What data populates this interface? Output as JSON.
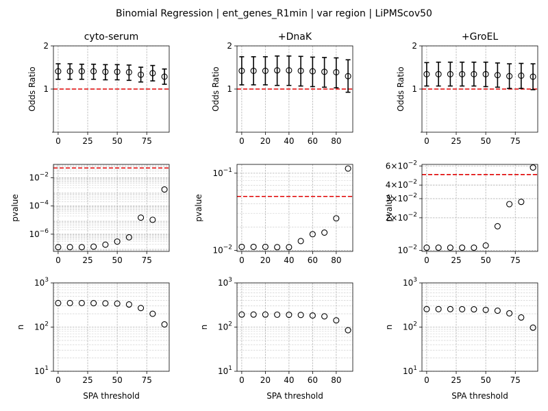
{
  "suptitle": "Binomial Regression | ent_genes_R1min | var region | LiPMScov50",
  "xlabel": "SPA threshold",
  "chart_data": [
    {
      "column": "cyto-serum",
      "panels": {
        "odds_ratio": {
          "type": "scatter",
          "ylabel": "Odds Ratio",
          "yscale": "log",
          "ylim": [
            0.5,
            2
          ],
          "yticks": [
            1,
            2
          ],
          "yticklabels": [
            "1",
            "2"
          ],
          "xlim": [
            -4,
            94
          ],
          "xticks": [
            0,
            25,
            50,
            75
          ],
          "x": [
            0,
            10,
            20,
            30,
            40,
            50,
            60,
            70,
            80,
            90
          ],
          "y": [
            1.33,
            1.33,
            1.33,
            1.33,
            1.32,
            1.32,
            1.31,
            1.26,
            1.29,
            1.22
          ],
          "low": [
            1.17,
            1.17,
            1.17,
            1.17,
            1.16,
            1.16,
            1.15,
            1.12,
            1.14,
            1.08
          ],
          "high": [
            1.5,
            1.5,
            1.49,
            1.49,
            1.48,
            1.48,
            1.47,
            1.42,
            1.46,
            1.38
          ],
          "reference_line": 1.0
        },
        "pvalue": {
          "type": "scatter",
          "ylabel": "pvalue",
          "yscale": "log",
          "ylim": [
            6e-08,
            0.09
          ],
          "yticks": [
            1e-06,
            0.0001,
            0.01
          ],
          "yticklabels": [
            "10^-6",
            "10^-4",
            "10^-2"
          ],
          "xlim": [
            -4,
            94
          ],
          "xticks": [
            0,
            25,
            50,
            75
          ],
          "x": [
            0,
            10,
            20,
            30,
            40,
            50,
            60,
            70,
            80,
            90
          ],
          "y": [
            1.2e-07,
            1.2e-07,
            1.2e-07,
            1.3e-07,
            1.8e-07,
            3e-07,
            6e-07,
            1.5e-05,
            1.05e-05,
            0.0015
          ],
          "reference_line": 0.05
        },
        "n": {
          "type": "scatter",
          "ylabel": "n",
          "yscale": "log",
          "ylim": [
            10,
            1000
          ],
          "yticks": [
            10,
            100,
            1000
          ],
          "yticklabels": [
            "10^1",
            "10^2",
            "10^3"
          ],
          "xlim": [
            -4,
            94
          ],
          "xticks": [
            0,
            25,
            50,
            75
          ],
          "x": [
            0,
            10,
            20,
            30,
            40,
            50,
            60,
            70,
            80,
            90
          ],
          "y": [
            350,
            350,
            350,
            348,
            345,
            340,
            325,
            270,
            200,
            115
          ]
        }
      }
    },
    {
      "column": "+DnaK",
      "panels": {
        "odds_ratio": {
          "type": "scatter",
          "ylabel": "Odds Ratio",
          "yscale": "log",
          "ylim": [
            0.5,
            2
          ],
          "yticks": [
            1,
            2
          ],
          "yticklabels": [
            "1",
            "2"
          ],
          "xlim": [
            -4,
            94
          ],
          "xticks": [
            0,
            20,
            40,
            60,
            80
          ],
          "x": [
            0,
            10,
            20,
            30,
            40,
            50,
            60,
            70,
            80,
            90
          ],
          "y": [
            1.34,
            1.34,
            1.34,
            1.35,
            1.35,
            1.34,
            1.33,
            1.32,
            1.31,
            1.23
          ],
          "low": [
            1.07,
            1.07,
            1.07,
            1.06,
            1.06,
            1.05,
            1.04,
            1.03,
            1.02,
            0.95
          ],
          "high": [
            1.68,
            1.68,
            1.68,
            1.7,
            1.7,
            1.69,
            1.67,
            1.66,
            1.65,
            1.6
          ],
          "reference_line": 1.0
        },
        "pvalue": {
          "type": "scatter",
          "ylabel": "pvalue",
          "yscale": "log",
          "ylim": [
            0.0097,
            0.13
          ],
          "yticks": [
            0.01,
            0.1
          ],
          "yticklabels": [
            "10^-2",
            "10^-1"
          ],
          "xlim": [
            -4,
            94
          ],
          "xticks": [
            0,
            20,
            40,
            60,
            80
          ],
          "x": [
            0,
            10,
            20,
            30,
            40,
            50,
            60,
            70,
            80,
            90
          ],
          "y": [
            0.0111,
            0.0111,
            0.0111,
            0.011,
            0.011,
            0.0132,
            0.0162,
            0.017,
            0.026,
            0.115
          ],
          "reference_line": 0.05
        },
        "n": {
          "type": "scatter",
          "ylabel": "n",
          "yscale": "log",
          "ylim": [
            10,
            1000
          ],
          "yticks": [
            10,
            100,
            1000
          ],
          "yticklabels": [
            "10^1",
            "10^2",
            "10^3"
          ],
          "xlim": [
            -4,
            94
          ],
          "xticks": [
            0,
            20,
            40,
            60,
            80
          ],
          "x": [
            0,
            10,
            20,
            30,
            40,
            50,
            60,
            70,
            80,
            90
          ],
          "y": [
            192,
            192,
            192,
            191,
            190,
            188,
            183,
            175,
            142,
            85
          ]
        }
      }
    },
    {
      "column": "+GroEL",
      "panels": {
        "odds_ratio": {
          "type": "scatter",
          "ylabel": "Odds Ratio",
          "yscale": "log",
          "ylim": [
            0.5,
            2
          ],
          "yticks": [
            1,
            2
          ],
          "yticklabels": [
            "1",
            "2"
          ],
          "xlim": [
            -4,
            94
          ],
          "xticks": [
            0,
            25,
            50,
            75
          ],
          "x": [
            0,
            10,
            20,
            30,
            40,
            50,
            60,
            70,
            80,
            90
          ],
          "y": [
            1.27,
            1.27,
            1.27,
            1.27,
            1.27,
            1.27,
            1.25,
            1.23,
            1.24,
            1.22
          ],
          "low": [
            1.05,
            1.05,
            1.05,
            1.05,
            1.05,
            1.04,
            1.03,
            1.01,
            1.01,
            0.99
          ],
          "high": [
            1.53,
            1.54,
            1.54,
            1.54,
            1.54,
            1.54,
            1.52,
            1.5,
            1.51,
            1.5
          ],
          "reference_line": 1.0
        },
        "pvalue": {
          "type": "scatter",
          "ylabel": "pvalue",
          "yscale": "log",
          "ylim": [
            0.0098,
            0.062
          ],
          "yticks": [
            0.01,
            0.02,
            0.03,
            0.04,
            0.06
          ],
          "yticklabels": [
            "10^-2",
            "2×10^-2",
            "3×10^-2",
            "4×10^-2",
            "6×10^-2"
          ],
          "xlim": [
            -4,
            94
          ],
          "xticks": [
            0,
            25,
            50,
            75
          ],
          "x": [
            0,
            10,
            20,
            30,
            40,
            50,
            60,
            70,
            80,
            90
          ],
          "y": [
            0.0106,
            0.0106,
            0.0106,
            0.0106,
            0.0106,
            0.0111,
            0.0167,
            0.0267,
            0.028,
            0.058
          ],
          "reference_line": 0.05
        },
        "n": {
          "type": "scatter",
          "ylabel": "n",
          "yscale": "log",
          "ylim": [
            10,
            1000
          ],
          "yticks": [
            10,
            100,
            1000
          ],
          "yticklabels": [
            "10^1",
            "10^2",
            "10^3"
          ],
          "xlim": [
            -4,
            94
          ],
          "xticks": [
            0,
            25,
            50,
            75
          ],
          "x": [
            0,
            10,
            20,
            30,
            40,
            50,
            60,
            70,
            80,
            90
          ],
          "y": [
            255,
            255,
            255,
            254,
            252,
            245,
            235,
            205,
            165,
            97
          ]
        }
      }
    }
  ]
}
